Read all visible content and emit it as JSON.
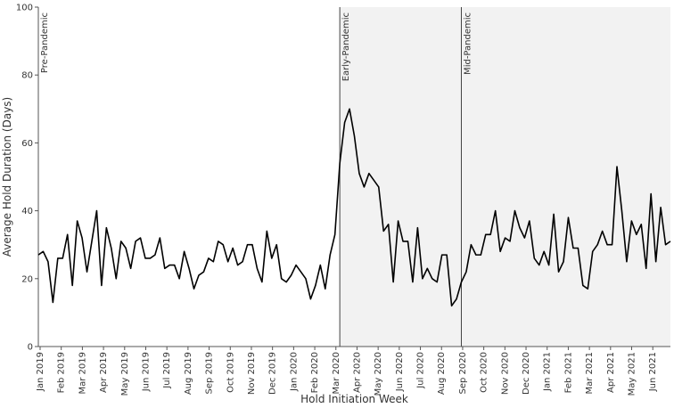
{
  "chart_data": {
    "type": "line",
    "title": "",
    "xlabel": "Hold Initiation Week",
    "ylabel": "Average Hold Duration (Days)",
    "ylim": [
      0,
      100
    ],
    "yticks": [
      0,
      20,
      40,
      60,
      80,
      100
    ],
    "x_month_labels": [
      "Jan 2019",
      "Feb 2019",
      "Mar 2019",
      "Apr 2019",
      "May 2019",
      "Jun 2019",
      "Jul 2019",
      "Aug 2019",
      "Sep 2019",
      "Oct 2019",
      "Nov 2019",
      "Dec 2019",
      "Jan 2020",
      "Feb 2020",
      "Mar 2020",
      "Apr 2020",
      "May 2020",
      "Jun 2020",
      "Jul 2020",
      "Aug 2020",
      "Sep 2020",
      "Oct 2020",
      "Nov 2020",
      "Dec 2020",
      "Jan 2021",
      "Feb 2021",
      "Mar 2021",
      "Apr 2021",
      "May 2021",
      "Jun 2021"
    ],
    "periods": [
      {
        "label": "Pre-Pandemic",
        "start_week": 0,
        "shaded": false
      },
      {
        "label": "Early-Pandemic",
        "start_week": 62,
        "shaded": true
      },
      {
        "label": "Mid-Pandemic",
        "start_week": 87,
        "shaded": true
      }
    ],
    "grid": false,
    "legend": "none",
    "series": [
      {
        "values": [
          27,
          28,
          25,
          13,
          26,
          26,
          33,
          18,
          37,
          32,
          22,
          31,
          40,
          18,
          35,
          29,
          20,
          31,
          29,
          23,
          31,
          32,
          26,
          26,
          27,
          32,
          23,
          24,
          24,
          20,
          28,
          23,
          17,
          21,
          22,
          26,
          25,
          31,
          30,
          25,
          29,
          24,
          25,
          30,
          30,
          23,
          19,
          34,
          26,
          30,
          20,
          19,
          21,
          24,
          22,
          20,
          14,
          18,
          24,
          17,
          27,
          33,
          54,
          66,
          70,
          62,
          51,
          47,
          51,
          49,
          47,
          34,
          36,
          19,
          37,
          31,
          31,
          19,
          35,
          20,
          23,
          20,
          19,
          27,
          27,
          12,
          14,
          19,
          22,
          30,
          27,
          27,
          33,
          33,
          40,
          28,
          32,
          31,
          40,
          35,
          32,
          37,
          26,
          24,
          28,
          24,
          39,
          22,
          25,
          38,
          29,
          29,
          18,
          17,
          28,
          30,
          34,
          30,
          30,
          53,
          40,
          25,
          37,
          33,
          36,
          23,
          45,
          25,
          41,
          30,
          31
        ],
        "color": "#000000"
      }
    ]
  },
  "colors": {
    "shade": "#f2f2f2",
    "line": "#000000",
    "axis": "#555555"
  }
}
